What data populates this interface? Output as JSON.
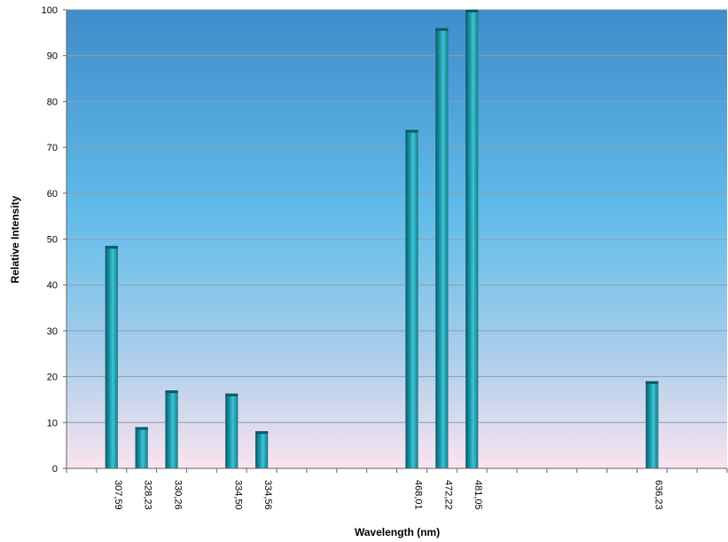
{
  "chart_data": {
    "type": "bar",
    "title": "",
    "xlabel": "Wavelength (nm)",
    "ylabel": "Relative Intensity",
    "ylim": [
      0,
      100
    ],
    "y_ticks": [
      0,
      10,
      20,
      30,
      40,
      50,
      60,
      70,
      80,
      90,
      100
    ],
    "grid": true,
    "legend": "none",
    "categories": [
      "",
      "307,59",
      "328,23",
      "330,26",
      "",
      "334,50",
      "334,56",
      "",
      "",
      "",
      "",
      "468,01",
      "472,22",
      "481,05",
      "",
      "",
      "",
      "",
      "",
      "636,23",
      "",
      ""
    ],
    "values": [
      null,
      48.5,
      9,
      17,
      null,
      16.3,
      8.1,
      null,
      null,
      null,
      null,
      73.8,
      96,
      100,
      null,
      null,
      null,
      null,
      null,
      19,
      null,
      null
    ],
    "colors": {
      "bar_dark": "#0a5a66",
      "bar_mid": "#1a96a8",
      "bar_light": "#3cc4d4",
      "background_top": "#3f8ccb",
      "background_mid": "#62bde9",
      "background_bottom": "#fbe4ef",
      "grid": "#8aa0b0"
    }
  }
}
